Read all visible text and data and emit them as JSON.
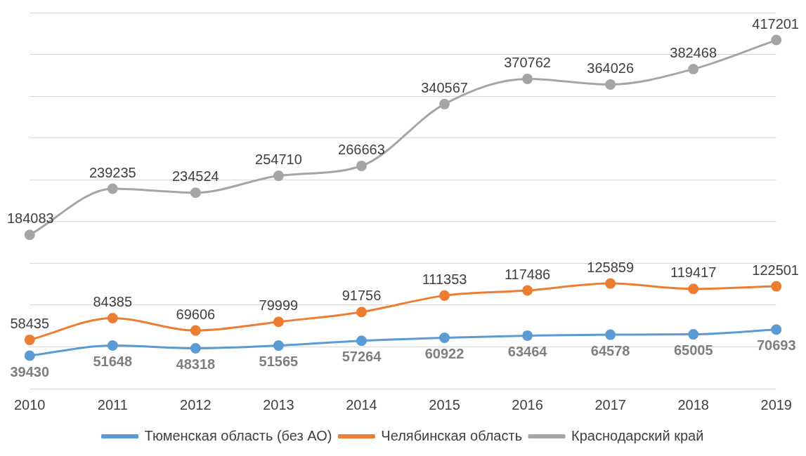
{
  "chart_data": {
    "type": "line",
    "categories": [
      "2010",
      "2011",
      "2012",
      "2013",
      "2014",
      "2015",
      "2016",
      "2017",
      "2018",
      "2019"
    ],
    "series": [
      {
        "name": "Тюменская область (без АО)",
        "color": "#5b9bd5",
        "values": [
          39430,
          51648,
          48318,
          51565,
          57264,
          60922,
          63464,
          64578,
          65005,
          70693
        ]
      },
      {
        "name": "Челябинская область",
        "color": "#ed7d31",
        "values": [
          58435,
          84385,
          69606,
          79999,
          91756,
          111353,
          117486,
          125859,
          119417,
          122501
        ]
      },
      {
        "name": "Краснодарский край",
        "color": "#a5a5a5",
        "values": [
          184083,
          239235,
          234524,
          254710,
          266663,
          340567,
          370762,
          364026,
          382468,
          417201
        ]
      }
    ],
    "ylim": [
      0,
      450000
    ],
    "yticks": [
      {
        "value": 0,
        "label": null
      },
      {
        "value": 50000,
        "label": null
      },
      {
        "value": 100000,
        "label": null
      },
      {
        "value": 150000,
        "label": null
      },
      {
        "value": 200000,
        "label": null
      },
      {
        "value": 250000,
        "label": null
      },
      {
        "value": 300000,
        "label": null
      },
      {
        "value": 350000,
        "label": null
      },
      {
        "value": 400000,
        "label": null
      },
      {
        "value": 450000,
        "label": null
      }
    ],
    "tick_labels": "x",
    "grid": "y",
    "legend": "bottom",
    "marker": "circle",
    "line_style": "solid",
    "data_labels": true
  }
}
